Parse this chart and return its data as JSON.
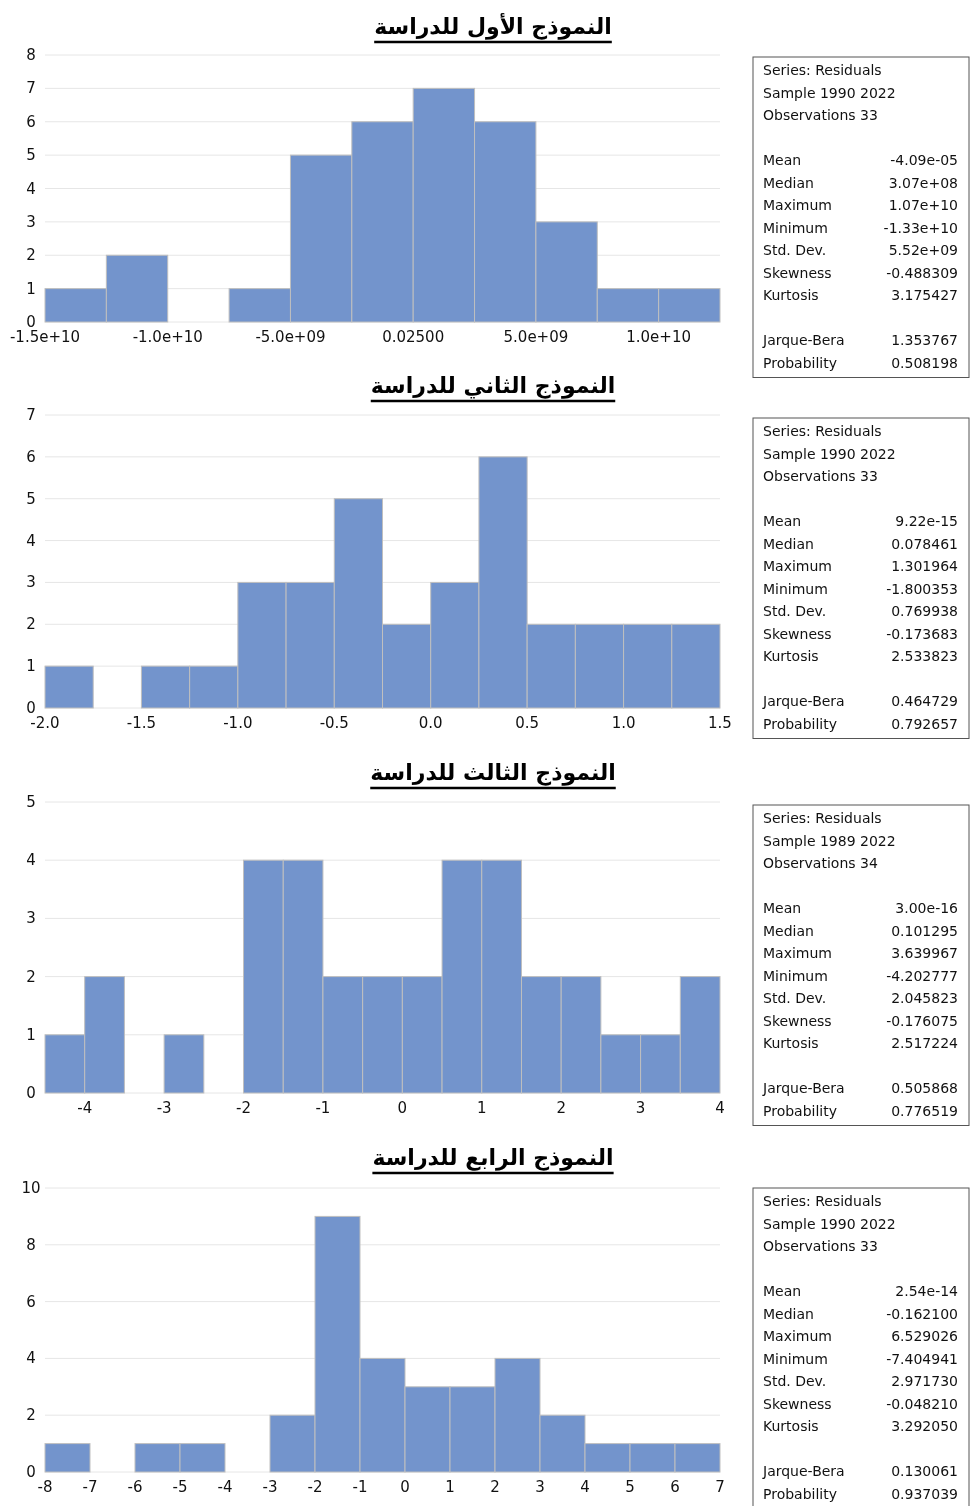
{
  "chart_data": [
    {
      "type": "histogram",
      "title": "النموذج الأول للدراسة",
      "color": "#7394cc",
      "grid": "y",
      "bins": [
        -15000000000,
        -12500000000,
        -10000000000,
        -7500000000,
        -5000000000,
        -2500000000,
        0,
        2500000000,
        5000000000,
        7500000000,
        10000000000,
        12500000000
      ],
      "values": [
        1,
        2,
        0,
        1,
        5,
        6,
        7,
        6,
        3,
        1,
        1
      ],
      "xlim": [
        -15000000000,
        12500000000
      ],
      "ylim": [
        0,
        8
      ],
      "xticks": [
        {
          "value": -15000000000,
          "label": "-1.5e+10"
        },
        {
          "value": -10000000000,
          "label": "-1.0e+10"
        },
        {
          "value": -5000000000,
          "label": "-5.0e+09"
        },
        {
          "value": 0.025,
          "label": "0.02500"
        },
        {
          "value": 5000000000,
          "label": "5.0e+09"
        },
        {
          "value": 10000000000,
          "label": "1.0e+10"
        }
      ],
      "yticks": [
        0,
        1,
        2,
        3,
        4,
        5,
        6,
        7,
        8
      ],
      "annotations": [
        "Series: Residuals",
        "Sample 1990 2022",
        "Observations 33",
        "Mean",
        "-4.09e-05",
        "Median",
        "3.07e+08",
        "Maximum",
        "1.07e+10",
        "Minimum",
        "-1.33e+10",
        "Std. Dev.",
        "5.52e+09",
        "Skewness",
        "-0.488309",
        "Kurtosis",
        "3.175427",
        "Jarque-Bera",
        "1.353767",
        "Probability",
        "0.508198"
      ]
    },
    {
      "type": "histogram",
      "title": "النموذج الثاني للدراسة",
      "color": "#7394cc",
      "grid": "y",
      "bins": [
        -2.0,
        -1.75,
        -1.5,
        -1.25,
        -1.0,
        -0.75,
        -0.5,
        -0.25,
        0.0,
        0.25,
        0.5,
        0.75,
        1.0,
        1.25,
        1.5
      ],
      "values": [
        1,
        0,
        1,
        1,
        3,
        3,
        5,
        2,
        3,
        6,
        2,
        2,
        2,
        2
      ],
      "xlim": [
        -2.0,
        1.5
      ],
      "ylim": [
        0,
        7
      ],
      "xticks": [
        {
          "value": -2.0,
          "label": "-2.0"
        },
        {
          "value": -1.5,
          "label": "-1.5"
        },
        {
          "value": -1.0,
          "label": "-1.0"
        },
        {
          "value": -0.5,
          "label": "-0.5"
        },
        {
          "value": 0.0,
          "label": "0.0"
        },
        {
          "value": 0.5,
          "label": "0.5"
        },
        {
          "value": 1.0,
          "label": "1.0"
        },
        {
          "value": 1.5,
          "label": "1.5"
        }
      ],
      "yticks": [
        0,
        1,
        2,
        3,
        4,
        5,
        6,
        7
      ],
      "annotations": [
        "Series: Residuals",
        "Sample 1990 2022",
        "Observations 33",
        "Mean",
        "9.22e-15",
        "Median",
        "0.078461",
        "Maximum",
        "1.301964",
        "Minimum",
        "-1.800353",
        "Std. Dev.",
        "0.769938",
        "Skewness",
        "-0.173683",
        "Kurtosis",
        "2.533823",
        "Jarque-Bera",
        "0.464729",
        "Probability",
        "0.792657"
      ]
    },
    {
      "type": "histogram",
      "title": "النموذج الثالث للدراسة",
      "color": "#7394cc",
      "grid": "y",
      "bins": [
        -4.5,
        -4.0,
        -3.5,
        -3.0,
        -2.5,
        -2.0,
        -1.5,
        -1.0,
        -0.5,
        0.0,
        0.5,
        1.0,
        1.5,
        2.0,
        2.5,
        3.0,
        3.5,
        4.0
      ],
      "values": [
        1,
        2,
        0,
        1,
        0,
        4,
        4,
        2,
        2,
        2,
        4,
        4,
        2,
        2,
        1,
        1,
        2
      ],
      "xlim": [
        -4.5,
        4.0
      ],
      "ylim": [
        0,
        5
      ],
      "xticks": [
        -4,
        -3,
        -2,
        -1,
        0,
        1,
        2,
        3,
        4
      ],
      "yticks": [
        0,
        1,
        2,
        3,
        4,
        5
      ],
      "annotations": [
        "Series: Residuals",
        "Sample 1989 2022",
        "Observations 34",
        "Mean",
        "3.00e-16",
        "Median",
        "0.101295",
        "Maximum",
        "3.639967",
        "Minimum",
        "-4.202777",
        "Std. Dev.",
        "2.045823",
        "Skewness",
        "-0.176075",
        "Kurtosis",
        "2.517224",
        "Jarque-Bera",
        "0.505868",
        "Probability",
        "0.776519"
      ]
    },
    {
      "type": "histogram",
      "title": "النموذج الرابع للدراسة",
      "color": "#7394cc",
      "grid": "y",
      "bins": [
        -8,
        -7,
        -6,
        -5,
        -4,
        -3,
        -2,
        -1,
        0,
        1,
        2,
        3,
        4,
        5,
        6,
        7
      ],
      "values": [
        1,
        0,
        1,
        1,
        0,
        2,
        9,
        4,
        3,
        3,
        4,
        2,
        1,
        1,
        1
      ],
      "xlim": [
        -8,
        7
      ],
      "ylim": [
        0,
        10
      ],
      "xticks": [
        -8,
        -7,
        -6,
        -5,
        -4,
        -3,
        -2,
        -1,
        0,
        1,
        2,
        3,
        4,
        5,
        6,
        7
      ],
      "yticks": [
        0,
        2,
        4,
        6,
        8,
        10
      ],
      "annotations": [
        "Series: Residuals",
        "Sample 1990 2022",
        "Observations 33",
        "Mean",
        "2.54e-14",
        "Median",
        "-0.162100",
        "Maximum",
        "6.529026",
        "Minimum",
        "-7.404941",
        "Std. Dev.",
        "2.971730",
        "Skewness",
        "-0.048210",
        "Kurtosis",
        "3.292050",
        "Jarque-Bera",
        "0.130061",
        "Probability",
        "0.937039"
      ]
    }
  ]
}
